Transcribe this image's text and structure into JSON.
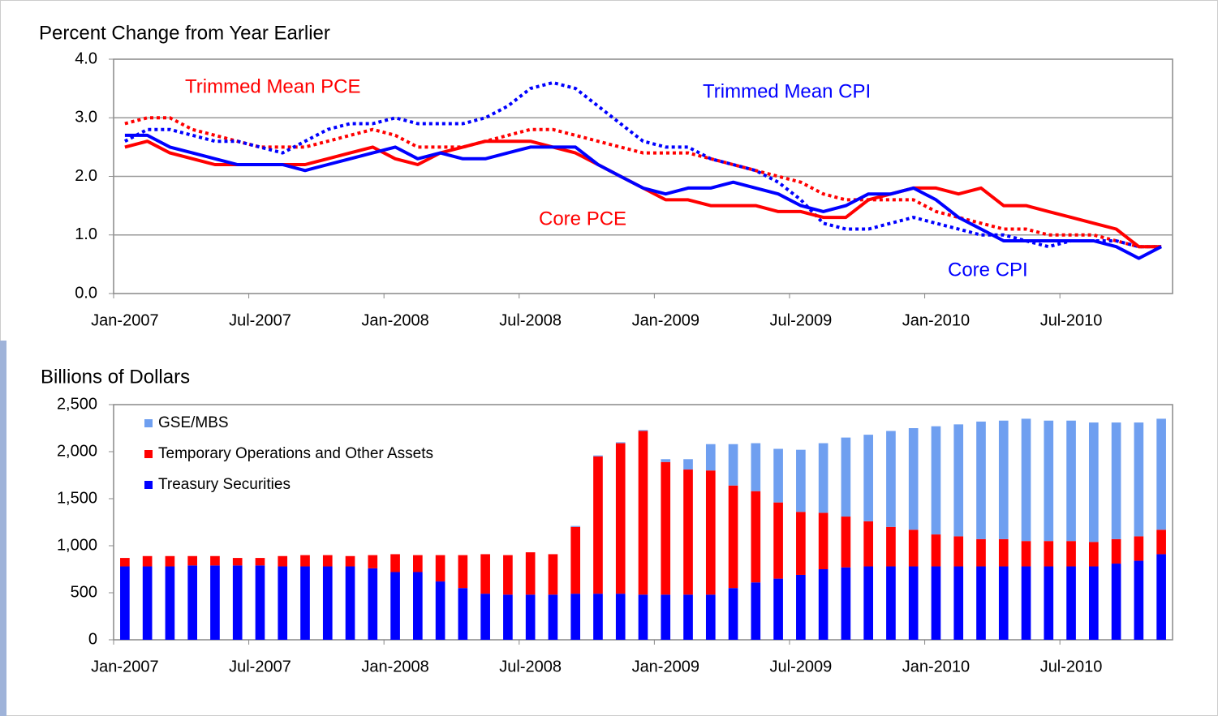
{
  "chart_data": [
    {
      "type": "line",
      "title": "Percent Change from Year Earlier",
      "categories": [
        "Jan-2007",
        null,
        null,
        null,
        null,
        null,
        "Jul-2007",
        null,
        null,
        null,
        null,
        null,
        "Jan-2008",
        null,
        null,
        null,
        null,
        null,
        "Jul-2008",
        null,
        null,
        null,
        null,
        null,
        "Jan-2009",
        null,
        null,
        null,
        null,
        null,
        "Jul-2009",
        null,
        null,
        null,
        null,
        null,
        "Jan-2010",
        null,
        null,
        null,
        null,
        null,
        "Jul-2010",
        null,
        null,
        null,
        null
      ],
      "ylim": [
        0,
        4
      ],
      "yticks": [
        {
          "value": 0,
          "label": "0.0"
        },
        {
          "value": 1,
          "label": "1.0"
        },
        {
          "value": 2,
          "label": "2.0"
        },
        {
          "value": 3,
          "label": "3.0"
        },
        {
          "value": 4,
          "label": "4.0"
        }
      ],
      "grid": true,
      "series": [
        {
          "name": "Trimmed Mean PCE",
          "color": "#ff0000",
          "line_style": "dotted",
          "values": [
            2.9,
            3.0,
            3.0,
            2.8,
            2.7,
            2.6,
            2.5,
            2.5,
            2.5,
            2.6,
            2.7,
            2.8,
            2.7,
            2.5,
            2.5,
            2.5,
            2.6,
            2.7,
            2.8,
            2.8,
            2.7,
            2.6,
            2.5,
            2.4,
            2.4,
            2.4,
            2.3,
            2.2,
            2.1,
            2.0,
            1.9,
            1.7,
            1.6,
            1.6,
            1.6,
            1.6,
            1.4,
            1.3,
            1.2,
            1.1,
            1.1,
            1.0,
            1.0,
            1.0,
            0.9,
            0.8,
            0.8
          ]
        },
        {
          "name": "Trimmed Mean CPI",
          "color": "#0000ff",
          "line_style": "dotted",
          "values": [
            2.6,
            2.8,
            2.8,
            2.7,
            2.6,
            2.6,
            2.5,
            2.4,
            2.6,
            2.8,
            2.9,
            2.9,
            3.0,
            2.9,
            2.9,
            2.9,
            3.0,
            3.2,
            3.5,
            3.6,
            3.5,
            3.2,
            2.9,
            2.6,
            2.5,
            2.5,
            2.3,
            2.2,
            2.1,
            1.9,
            1.6,
            1.2,
            1.1,
            1.1,
            1.2,
            1.3,
            1.2,
            1.1,
            1.0,
            1.0,
            0.9,
            0.8,
            0.9,
            0.9,
            0.9,
            0.8,
            0.8
          ]
        },
        {
          "name": "Core PCE",
          "color": "#ff0000",
          "line_style": "solid",
          "values": [
            2.5,
            2.6,
            2.4,
            2.3,
            2.2,
            2.2,
            2.2,
            2.2,
            2.2,
            2.3,
            2.4,
            2.5,
            2.3,
            2.2,
            2.4,
            2.5,
            2.6,
            2.6,
            2.6,
            2.5,
            2.4,
            2.2,
            2.0,
            1.8,
            1.6,
            1.6,
            1.5,
            1.5,
            1.5,
            1.4,
            1.4,
            1.3,
            1.3,
            1.6,
            1.7,
            1.8,
            1.8,
            1.7,
            1.8,
            1.5,
            1.5,
            1.4,
            1.3,
            1.2,
            1.1,
            0.8,
            0.8
          ]
        },
        {
          "name": "Core CPI",
          "color": "#0000ff",
          "line_style": "solid",
          "values": [
            2.7,
            2.7,
            2.5,
            2.4,
            2.3,
            2.2,
            2.2,
            2.2,
            2.1,
            2.2,
            2.3,
            2.4,
            2.5,
            2.3,
            2.4,
            2.3,
            2.3,
            2.4,
            2.5,
            2.5,
            2.5,
            2.2,
            2.0,
            1.8,
            1.7,
            1.8,
            1.8,
            1.9,
            1.8,
            1.7,
            1.5,
            1.4,
            1.5,
            1.7,
            1.7,
            1.8,
            1.6,
            1.3,
            1.1,
            0.9,
            0.9,
            0.9,
            0.9,
            0.9,
            0.8,
            0.6,
            0.8
          ]
        }
      ]
    },
    {
      "type": "stacked_bar",
      "title": "Billions of Dollars",
      "categories": [
        "Jan-2007",
        null,
        null,
        null,
        null,
        null,
        "Jul-2007",
        null,
        null,
        null,
        null,
        null,
        "Jan-2008",
        null,
        null,
        null,
        null,
        null,
        "Jul-2008",
        null,
        null,
        null,
        null,
        null,
        "Jan-2009",
        null,
        null,
        null,
        null,
        null,
        "Jul-2009",
        null,
        null,
        null,
        null,
        null,
        "Jan-2010",
        null,
        null,
        null,
        null,
        null,
        "Jul-2010",
        null,
        null,
        null,
        null
      ],
      "ylim": [
        0,
        2500
      ],
      "yticks": [
        0,
        500,
        {
          "value": 1000,
          "label": "1,000"
        },
        {
          "value": 1500,
          "label": "1,500"
        },
        {
          "value": 2000,
          "label": "2,000"
        },
        {
          "value": 2500,
          "label": "2,500"
        }
      ],
      "grid": false,
      "legend": "top-left",
      "series": [
        {
          "name": "Treasury Securities",
          "color": "#0000ff",
          "values": [
            780,
            780,
            780,
            790,
            790,
            790,
            790,
            780,
            780,
            780,
            780,
            760,
            720,
            720,
            620,
            550,
            490,
            480,
            480,
            480,
            490,
            490,
            490,
            480,
            480,
            480,
            480,
            550,
            610,
            650,
            690,
            750,
            770,
            780,
            780,
            780,
            780,
            780,
            780,
            780,
            780,
            780,
            780,
            780,
            810,
            840,
            910
          ]
        },
        {
          "name": "Temporary Operations and Other Assets",
          "color": "#ff0000",
          "values": [
            90,
            110,
            110,
            100,
            100,
            80,
            80,
            110,
            120,
            120,
            110,
            140,
            190,
            180,
            280,
            350,
            420,
            420,
            450,
            430,
            710,
            1460,
            1600,
            1740,
            1410,
            1330,
            1320,
            1090,
            970,
            810,
            670,
            600,
            540,
            480,
            420,
            390,
            340,
            320,
            290,
            290,
            270,
            270,
            270,
            260,
            260,
            260,
            260
          ]
        },
        {
          "name": "GSE/MBS",
          "color": "#6f9ff0",
          "values": [
            0,
            0,
            0,
            0,
            0,
            0,
            0,
            0,
            0,
            0,
            0,
            0,
            0,
            0,
            0,
            0,
            0,
            0,
            0,
            0,
            10,
            10,
            10,
            10,
            30,
            110,
            280,
            440,
            510,
            570,
            660,
            740,
            840,
            920,
            1020,
            1080,
            1150,
            1190,
            1250,
            1260,
            1300,
            1280,
            1280,
            1270,
            1240,
            1210,
            1180
          ]
        }
      ]
    }
  ]
}
